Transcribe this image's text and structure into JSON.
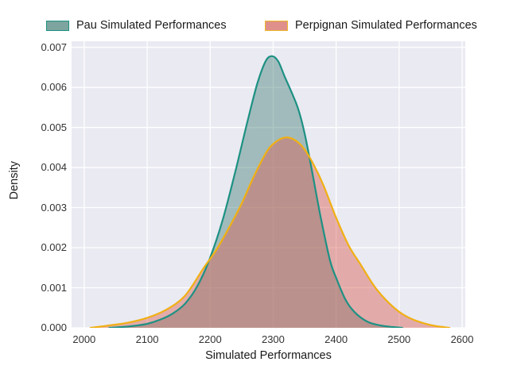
{
  "figure": {
    "background": "#ffffff"
  },
  "chart_data": {
    "type": "area",
    "title": "",
    "xlabel": "Simulated Performances",
    "ylabel": "Density",
    "xlim": [
      1980,
      2605
    ],
    "ylim": [
      0,
      0.00715
    ],
    "x_ticks": [
      2000,
      2100,
      2200,
      2300,
      2400,
      2500,
      2600
    ],
    "y_ticks": [
      0,
      0.001,
      0.002,
      0.003,
      0.004,
      0.005,
      0.006,
      0.007
    ],
    "y_tick_labels": [
      "0.000",
      "0.001",
      "0.002",
      "0.003",
      "0.004",
      "0.005",
      "0.006",
      "0.007"
    ],
    "grid": true,
    "legend_position": "top",
    "plot_background": "#eaeaf2",
    "grid_color": "#ffffff",
    "series": [
      {
        "name": "Pau Simulated Performances",
        "id": "pau",
        "line_color": "#1d9183",
        "fill_color": "#4a837c",
        "fill_opacity": 0.45,
        "swatch_fill": "#7da49e",
        "swatch_border": "#1d9183",
        "peak": {
          "x": 2298,
          "y": 0.00678
        },
        "x": [
          2040,
          2060,
          2080,
          2100,
          2120,
          2140,
          2160,
          2180,
          2200,
          2220,
          2240,
          2260,
          2275,
          2288,
          2298,
          2308,
          2318,
          2330,
          2340,
          2350,
          2360,
          2375,
          2390,
          2400,
          2415,
          2430,
          2450,
          2470,
          2490,
          2505
        ],
        "y": [
          0,
          2e-05,
          5e-05,
          0.0001,
          0.0002,
          0.00035,
          0.0006,
          0.00105,
          0.00175,
          0.0027,
          0.0039,
          0.0052,
          0.0061,
          0.00665,
          0.00678,
          0.00665,
          0.00628,
          0.00585,
          0.00545,
          0.00485,
          0.00405,
          0.0028,
          0.0017,
          0.00125,
          0.0007,
          0.00038,
          0.00015,
          6e-05,
          2e-05,
          0
        ]
      },
      {
        "name": "Perpignan Simulated Performances",
        "id": "perpignan",
        "line_color": "#f0b014",
        "fill_color": "#d95f52",
        "fill_opacity": 0.45,
        "swatch_fill": "#e0908a",
        "swatch_border": "#edb82a",
        "peak": {
          "x": 2320,
          "y": 0.00475
        },
        "x": [
          2010,
          2040,
          2070,
          2100,
          2130,
          2160,
          2190,
          2210,
          2230,
          2250,
          2270,
          2290,
          2305,
          2320,
          2335,
          2350,
          2365,
          2380,
          2400,
          2420,
          2440,
          2460,
          2480,
          2500,
          2520,
          2540,
          2560,
          2580
        ],
        "y": [
          0,
          6e-05,
          0.00013,
          0.00025,
          0.00045,
          0.0008,
          0.0015,
          0.00195,
          0.0025,
          0.0031,
          0.0038,
          0.0044,
          0.00465,
          0.00475,
          0.00468,
          0.00445,
          0.00405,
          0.00355,
          0.00275,
          0.00205,
          0.00155,
          0.00105,
          0.00068,
          0.0004,
          0.00022,
          0.00011,
          4e-05,
          0
        ]
      }
    ]
  }
}
